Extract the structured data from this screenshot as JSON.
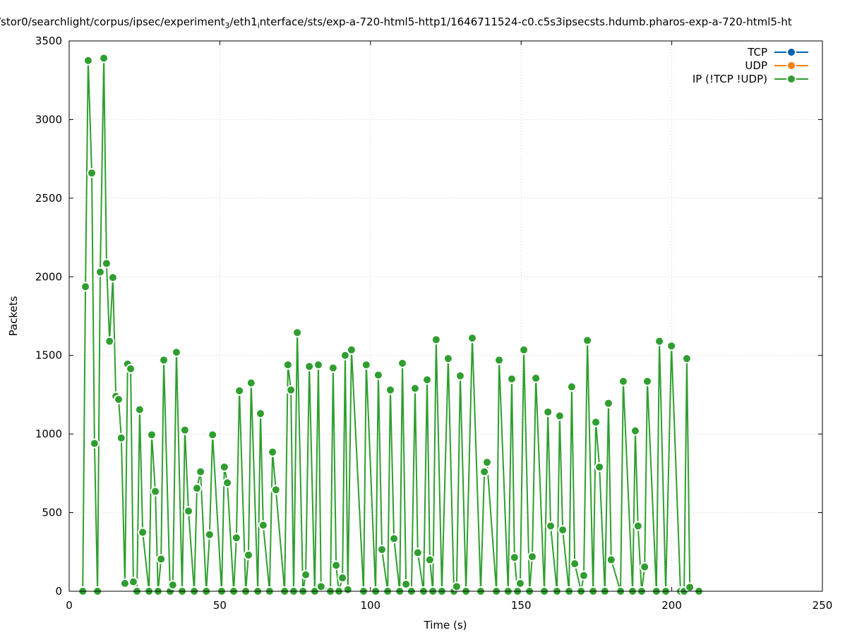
{
  "chart_data": {
    "type": "line",
    "title_parts": [
      "/stor0/searchlight/corpus/ipsec/experiment",
      "3",
      "/eth1",
      "i",
      "nterface/sts/exp-a-720-html5-http1/1646711524-c0.c5s3ipsecsts.hdumb.pharos-exp-a-720-html5-ht"
    ],
    "x_label": "Time (s)",
    "y_label": "Packets",
    "xlim": [
      0,
      250
    ],
    "xticks": [
      0,
      50,
      100,
      150,
      200,
      250
    ],
    "ylim": [
      0,
      3500
    ],
    "yticks": [
      0,
      500,
      1000,
      1500,
      2000,
      2500,
      3000,
      3500
    ],
    "grid": true,
    "legend": "top-right",
    "series": [
      {
        "name": "TCP",
        "color": "#0060ad",
        "x": [],
        "values": []
      },
      {
        "name": "UDP",
        "color": "#f7820f",
        "x": [],
        "values": []
      },
      {
        "name": "IP (!TCP  !UDP)",
        "color": "#2f9e2f",
        "x": [
          4.5,
          5.4,
          6.3,
          7.5,
          8.4,
          9.4,
          10.3,
          11.5,
          12.4,
          13.4,
          14.5,
          15.5,
          16.4,
          17.3,
          18.5,
          19.4,
          20.4,
          21.3,
          22.5,
          23.4,
          24.4,
          26.5,
          27.4,
          28.6,
          29.5,
          30.5,
          31.4,
          33.5,
          34.4,
          35.6,
          37.5,
          38.4,
          39.6,
          41.5,
          42.4,
          43.6,
          45.5,
          46.6,
          47.6,
          50.6,
          51.5,
          52.5,
          54.6,
          55.5,
          56.5,
          58.6,
          59.5,
          60.4,
          62.6,
          63.5,
          64.4,
          66.5,
          67.5,
          68.6,
          71.5,
          72.6,
          73.6,
          74.5,
          75.7,
          77.6,
          78.5,
          79.7,
          81.5,
          82.7,
          83.6,
          86.7,
          87.6,
          88.6,
          89.5,
          90.7,
          91.6,
          92.5,
          93.7,
          97.7,
          98.6,
          101.7,
          102.6,
          103.8,
          105.7,
          106.6,
          107.8,
          109.7,
          110.6,
          111.8,
          113.6,
          114.8,
          115.7,
          117.6,
          118.8,
          119.7,
          120.7,
          121.8,
          123.7,
          125.8,
          127.7,
          128.6,
          129.8,
          131.7,
          133.8,
          136.6,
          137.8,
          138.7,
          141.8,
          142.7,
          145.7,
          146.9,
          147.8,
          148.8,
          149.7,
          150.9,
          152.8,
          153.7,
          154.9,
          157.7,
          158.9,
          159.8,
          161.9,
          162.8,
          163.8,
          165.9,
          166.8,
          167.8,
          169.9,
          170.8,
          172.0,
          173.9,
          174.8,
          176.0,
          177.8,
          179.0,
          179.9,
          183.0,
          183.9,
          187.0,
          187.9,
          188.8,
          190.0,
          191.0,
          191.9,
          194.9,
          195.9,
          198.0,
          199.9,
          202.9,
          204.1,
          205.0,
          206.0,
          209.0
        ],
        "values": [
          0,
          1937,
          3375,
          2660,
          940,
          0,
          2030,
          3390,
          2085,
          1590,
          1995,
          1240,
          1220,
          975,
          50,
          1445,
          1415,
          60,
          0,
          1155,
          375,
          0,
          995,
          635,
          0,
          205,
          1470,
          0,
          40,
          1520,
          0,
          1025,
          510,
          0,
          655,
          760,
          0,
          360,
          995,
          0,
          790,
          690,
          0,
          340,
          1275,
          0,
          230,
          1325,
          0,
          1130,
          420,
          0,
          885,
          645,
          0,
          1440,
          1280,
          0,
          1645,
          0,
          105,
          1430,
          0,
          1440,
          30,
          0,
          1420,
          165,
          0,
          85,
          1500,
          10,
          1535,
          0,
          1440,
          0,
          1375,
          265,
          0,
          1280,
          335,
          0,
          1450,
          45,
          0,
          1290,
          245,
          0,
          1345,
          200,
          0,
          1600,
          0,
          1480,
          0,
          30,
          1370,
          0,
          1610,
          0,
          760,
          820,
          0,
          1470,
          0,
          1350,
          215,
          0,
          50,
          1535,
          0,
          220,
          1355,
          0,
          1140,
          415,
          0,
          1115,
          390,
          0,
          1300,
          175,
          0,
          100,
          1595,
          0,
          1075,
          790,
          0,
          1195,
          200,
          0,
          1335,
          0,
          1020,
          415,
          0,
          155,
          1335,
          0,
          1590,
          0,
          1560,
          0,
          0,
          1480,
          25,
          0
        ]
      }
    ]
  }
}
